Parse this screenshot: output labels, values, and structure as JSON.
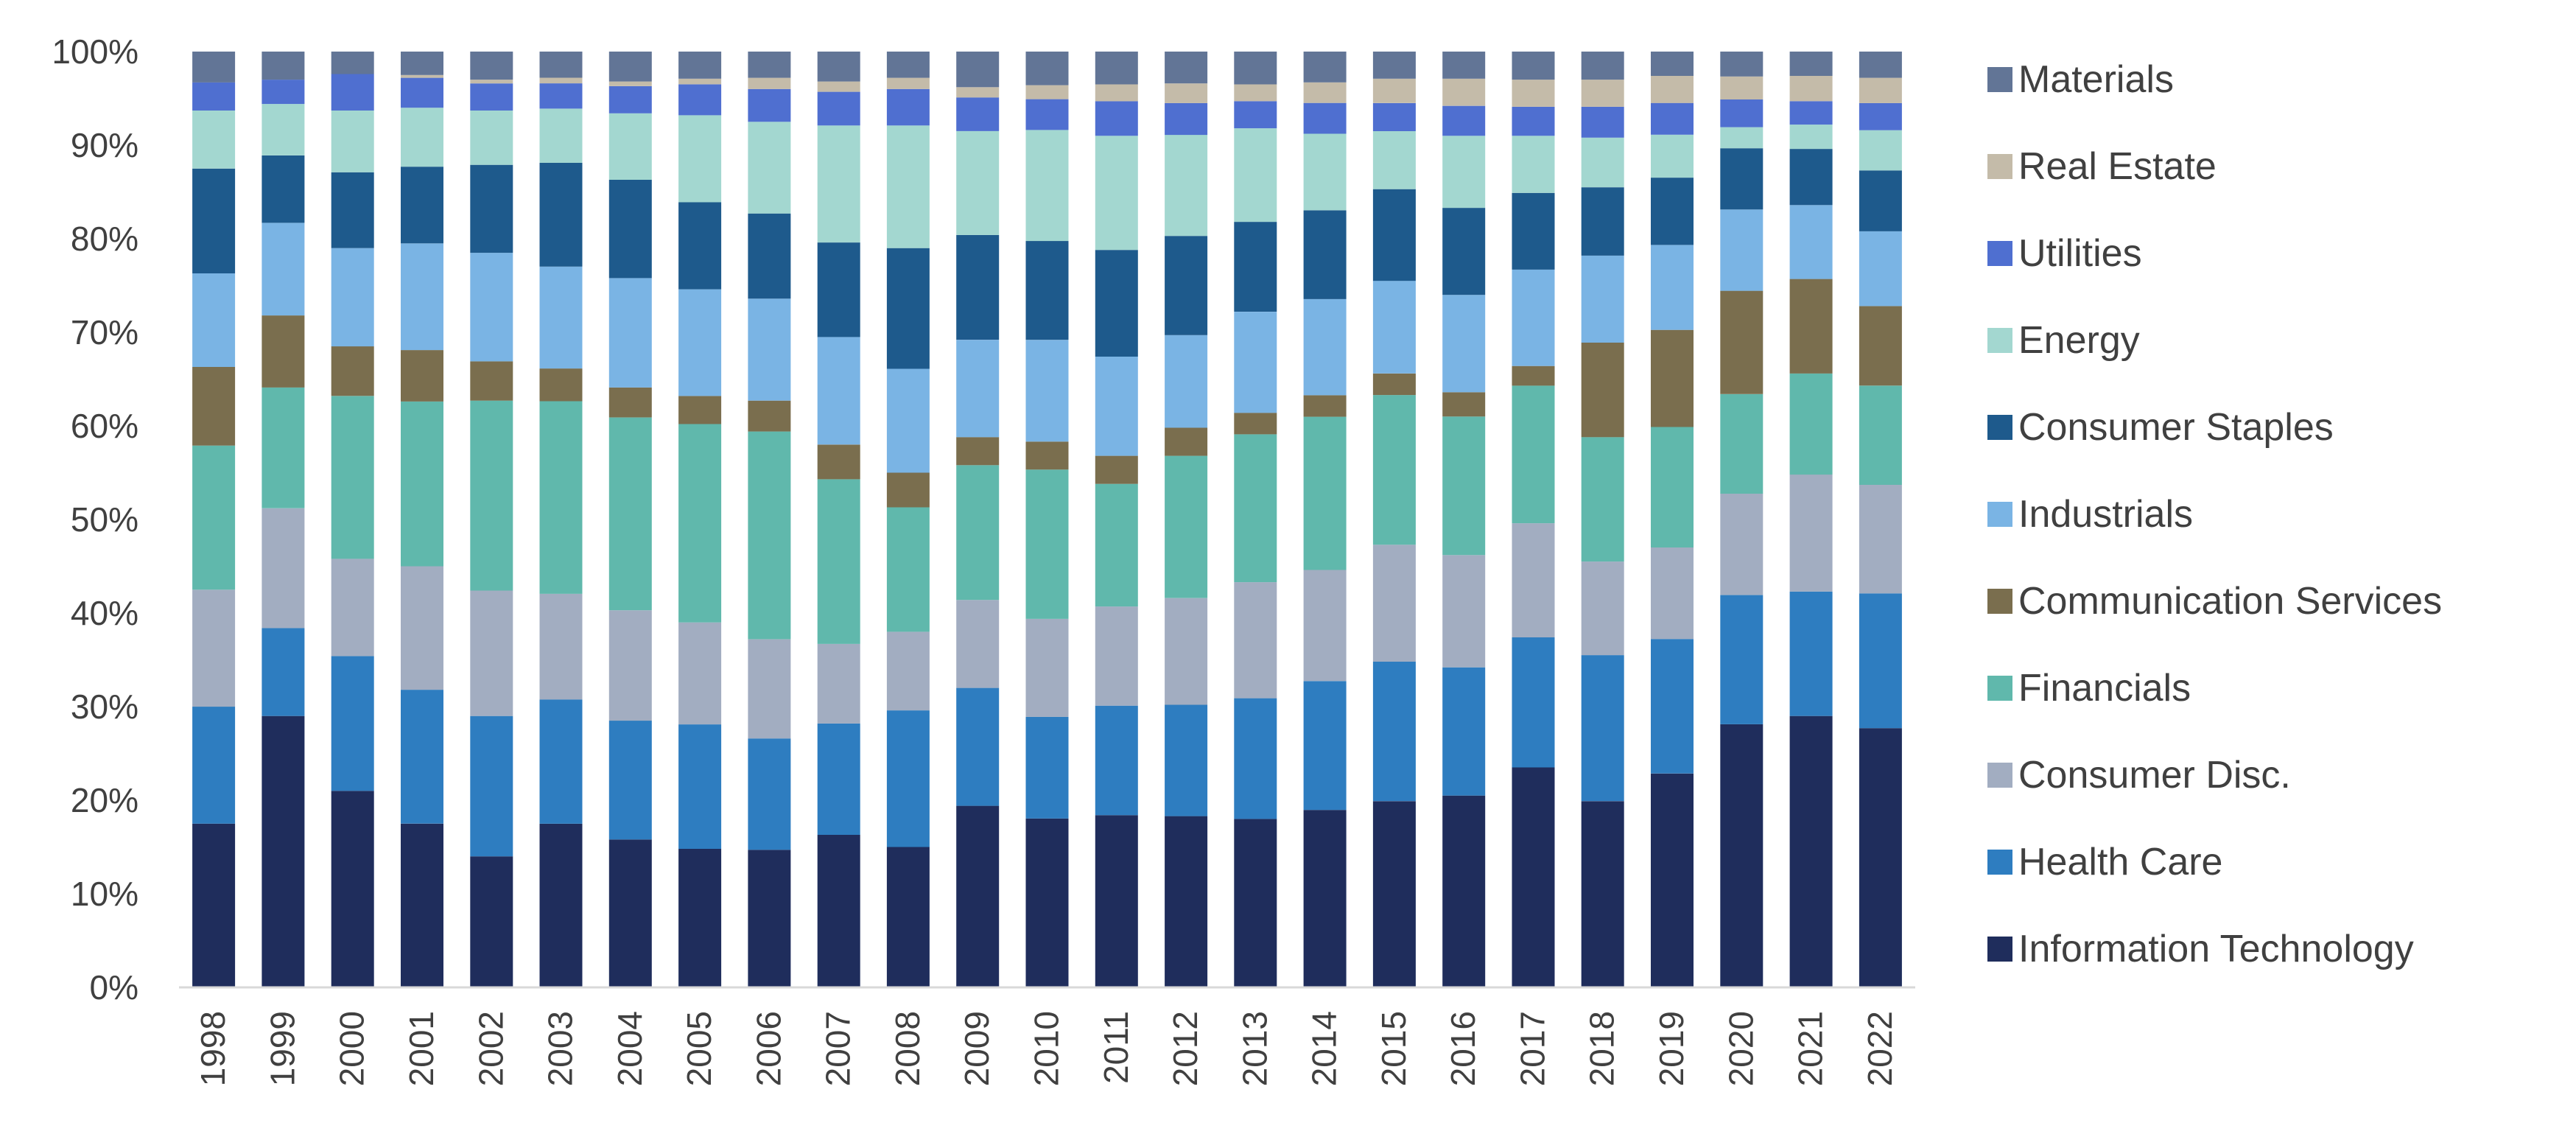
{
  "chart_data": {
    "type": "bar",
    "stacked": true,
    "percent_stacked": true,
    "categories": [
      "1998",
      "1999",
      "2000",
      "2001",
      "2002",
      "2003",
      "2004",
      "2005",
      "2006",
      "2007",
      "2008",
      "2009",
      "2010",
      "2011",
      "2012",
      "2013",
      "2014",
      "2015",
      "2016",
      "2017",
      "2018",
      "2019",
      "2020",
      "2021",
      "2022"
    ],
    "y_ticks": [
      "0%",
      "10%",
      "20%",
      "30%",
      "40%",
      "50%",
      "60%",
      "70%",
      "80%",
      "90%",
      "100%"
    ],
    "ylim": [
      0,
      100
    ],
    "legend_position": "right",
    "grid": false,
    "series": [
      {
        "name": "Information Technology",
        "color": "#1F2D5C",
        "values": [
          17.5,
          29.0,
          21.0,
          17.5,
          14.0,
          17.5,
          15.8,
          14.8,
          14.7,
          16.3,
          15.0,
          19.4,
          18.1,
          18.4,
          18.3,
          18.0,
          19.0,
          19.9,
          20.5,
          23.5,
          19.9,
          22.9,
          27.5,
          29.0,
          27.7
        ]
      },
      {
        "name": "Health Care",
        "color": "#2E7DC0",
        "values": [
          12.5,
          9.4,
          14.4,
          14.3,
          15.0,
          13.3,
          12.7,
          13.3,
          11.9,
          11.9,
          14.6,
          12.6,
          10.9,
          11.7,
          11.9,
          12.9,
          13.8,
          14.9,
          13.7,
          13.9,
          15.6,
          14.4,
          13.5,
          13.3,
          14.4
        ]
      },
      {
        "name": "Consumer Disc.",
        "color": "#A2ADC1",
        "values": [
          12.5,
          12.8,
          10.4,
          13.2,
          13.4,
          11.3,
          11.8,
          10.9,
          10.6,
          8.5,
          8.4,
          9.4,
          10.5,
          10.6,
          11.4,
          12.4,
          11.9,
          12.5,
          12.0,
          12.2,
          10.0,
          9.8,
          10.6,
          12.5,
          11.6
        ]
      },
      {
        "name": "Financials",
        "color": "#60B8AC",
        "values": [
          15.4,
          12.9,
          17.4,
          17.6,
          20.3,
          20.6,
          20.6,
          21.2,
          22.2,
          17.6,
          13.3,
          14.4,
          16.0,
          13.1,
          15.2,
          15.8,
          16.4,
          16.0,
          14.8,
          14.7,
          13.3,
          12.9,
          10.4,
          10.8,
          10.6
        ]
      },
      {
        "name": "Communication Services",
        "color": "#7A6E4E",
        "values": [
          8.4,
          7.7,
          5.3,
          5.5,
          4.2,
          3.5,
          3.2,
          3.0,
          3.3,
          3.7,
          3.7,
          3.0,
          3.0,
          3.0,
          3.0,
          2.3,
          2.3,
          2.3,
          2.6,
          2.1,
          10.1,
          10.4,
          10.8,
          10.1,
          8.5
        ]
      },
      {
        "name": "Industrials",
        "color": "#7AB4E4",
        "values": [
          10.0,
          9.9,
          10.5,
          11.4,
          11.6,
          10.9,
          11.7,
          11.4,
          10.9,
          11.5,
          11.1,
          10.4,
          10.9,
          10.6,
          9.9,
          10.8,
          10.3,
          9.9,
          10.4,
          10.3,
          9.3,
          9.1,
          8.5,
          7.9,
          8.0
        ]
      },
      {
        "name": "Consumer Staples",
        "color": "#1E5A8C",
        "values": [
          11.2,
          7.2,
          8.1,
          8.2,
          9.4,
          11.1,
          10.5,
          9.3,
          9.1,
          10.1,
          12.9,
          11.2,
          10.6,
          11.4,
          10.6,
          9.6,
          9.5,
          9.8,
          9.3,
          8.2,
          7.3,
          7.2,
          6.4,
          6.0,
          6.5
        ]
      },
      {
        "name": "Energy",
        "color": "#A3D7D0",
        "values": [
          6.2,
          5.5,
          6.6,
          6.3,
          5.8,
          5.8,
          7.1,
          9.3,
          9.8,
          12.5,
          13.1,
          11.1,
          11.9,
          12.2,
          10.8,
          10.0,
          8.2,
          6.2,
          7.7,
          6.1,
          5.3,
          4.6,
          2.2,
          2.6,
          4.3
        ]
      },
      {
        "name": "Utilities",
        "color": "#4F6FD0",
        "values": [
          3.0,
          2.6,
          3.9,
          3.2,
          2.9,
          2.7,
          2.9,
          3.3,
          3.5,
          3.6,
          3.9,
          3.6,
          3.3,
          3.7,
          3.4,
          2.9,
          3.3,
          3.0,
          3.2,
          3.1,
          3.3,
          3.4,
          2.9,
          2.5,
          2.9
        ]
      },
      {
        "name": "Real Estate",
        "color": "#C4BBA9",
        "values": [
          0.0,
          0.0,
          0.0,
          0.3,
          0.4,
          0.6,
          0.5,
          0.6,
          1.2,
          1.1,
          1.2,
          1.1,
          1.5,
          1.8,
          2.1,
          1.8,
          2.2,
          2.6,
          2.9,
          2.9,
          2.9,
          2.9,
          2.4,
          2.7,
          2.7
        ]
      },
      {
        "name": "Materials",
        "color": "#627596",
        "values": [
          3.3,
          3.0,
          2.4,
          2.5,
          3.0,
          2.8,
          3.2,
          2.9,
          2.8,
          3.2,
          2.8,
          3.8,
          3.6,
          3.5,
          3.4,
          3.5,
          3.3,
          2.9,
          2.9,
          3.0,
          3.0,
          2.6,
          2.6,
          2.6,
          2.8
        ]
      }
    ]
  }
}
